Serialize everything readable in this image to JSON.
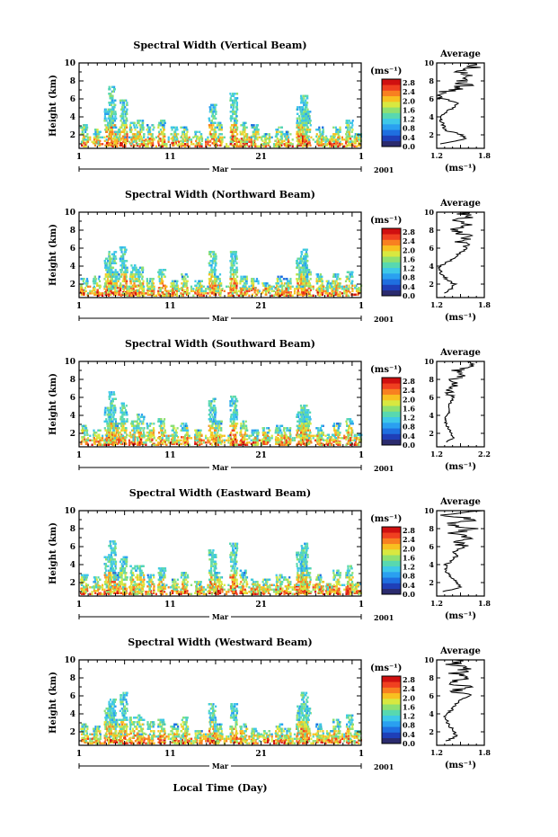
{
  "chart_data": [
    {
      "type": "heatmap",
      "title": "Spectral Width (Vertical Beam)",
      "ylabel": "Height (km)",
      "ylim": [
        0.5,
        10
      ],
      "yticks": [
        "2",
        "4",
        "6",
        "8",
        "10"
      ],
      "xticks": [
        "1",
        "11",
        "21",
        "1"
      ],
      "xlabel_month": "Mar",
      "year": "2001",
      "colorbar_unit": "(ms⁻¹)",
      "colorbar_ticks": [
        "0.0",
        "0.4",
        "0.8",
        "1.2",
        "1.6",
        "2.0",
        "2.4",
        "2.8"
      ],
      "average": {
        "title": "Average",
        "xticks": [
          "1.2",
          "1.8"
        ],
        "xlabel": "(ms⁻¹)",
        "yticks": [
          "2",
          "4",
          "6",
          "8",
          "10"
        ],
        "heights": [
          1.0,
          1.5,
          2.0,
          2.5,
          3.0,
          3.5,
          4.0,
          4.5,
          5.0,
          5.5,
          6.0,
          6.5,
          7.0,
          7.5,
          8.0,
          8.5,
          9.0,
          9.5,
          10.0
        ],
        "values": [
          1.25,
          1.55,
          1.52,
          1.32,
          1.28,
          1.26,
          1.24,
          1.32,
          1.4,
          1.48,
          1.3,
          1.24,
          1.4,
          1.55,
          1.5,
          1.65,
          1.45,
          1.7,
          1.6
        ]
      }
    },
    {
      "type": "heatmap",
      "title": "Spectral Width (Northward Beam)",
      "ylabel": "Height (km)",
      "ylim": [
        0.5,
        10
      ],
      "yticks": [
        "2",
        "4",
        "6",
        "8",
        "10"
      ],
      "xticks": [
        "1",
        "11",
        "21",
        "1"
      ],
      "xlabel_month": "Mar",
      "year": "2001",
      "colorbar_unit": "(ms⁻¹)",
      "colorbar_ticks": [
        "0.0",
        "0.4",
        "0.8",
        "1.2",
        "1.6",
        "2.0",
        "2.4",
        "2.8"
      ],
      "average": {
        "title": "Average",
        "xticks": [
          "1.2",
          "1.8"
        ],
        "xlabel": "(ms⁻¹)",
        "yticks": [
          "2",
          "4",
          "6",
          "8",
          "10"
        ],
        "heights": [
          1.0,
          1.5,
          2.0,
          2.5,
          3.0,
          3.5,
          4.0,
          4.5,
          5.0,
          5.5,
          6.0,
          6.5,
          7.0,
          7.5,
          8.0,
          8.5,
          9.0,
          9.5,
          10.0
        ],
        "values": [
          1.3,
          1.4,
          1.42,
          1.33,
          1.27,
          1.24,
          1.25,
          1.35,
          1.42,
          1.5,
          1.6,
          1.48,
          1.62,
          1.55,
          1.42,
          1.6,
          1.45,
          1.58,
          1.5
        ]
      }
    },
    {
      "type": "heatmap",
      "title": "Spectral Width (Southward Beam)",
      "ylabel": "Height (km)",
      "ylim": [
        0.5,
        10
      ],
      "yticks": [
        "2",
        "4",
        "6",
        "8",
        "10"
      ],
      "xticks": [
        "1",
        "11",
        "21",
        "1"
      ],
      "xlabel_month": "Mar",
      "year": "2001",
      "colorbar_unit": "(ms⁻¹)",
      "colorbar_ticks": [
        "0.0",
        "0.4",
        "0.8",
        "1.2",
        "1.6",
        "2.0",
        "2.4",
        "2.8"
      ],
      "average": {
        "title": "Average",
        "xticks": [
          "1.2",
          "2.2"
        ],
        "xlabel": "(ms⁻¹)",
        "yticks": [
          "2",
          "4",
          "6",
          "8",
          "10"
        ],
        "heights": [
          1.0,
          1.5,
          2.0,
          2.5,
          3.0,
          3.5,
          4.0,
          4.5,
          5.0,
          5.5,
          6.0,
          6.5,
          7.0,
          7.5,
          8.0,
          8.5,
          9.0,
          9.5,
          10.0
        ],
        "values": [
          1.4,
          1.55,
          1.5,
          1.45,
          1.4,
          1.38,
          1.42,
          1.48,
          1.45,
          1.5,
          1.55,
          1.48,
          1.45,
          1.6,
          1.55,
          1.8,
          1.6,
          2.0,
          1.9
        ]
      }
    },
    {
      "type": "heatmap",
      "title": "Spectral Width (Eastward Beam)",
      "ylabel": "Height (km)",
      "ylim": [
        0.5,
        10
      ],
      "yticks": [
        "2",
        "4",
        "6",
        "8",
        "10"
      ],
      "xticks": [
        "1",
        "11",
        "21",
        "1"
      ],
      "xlabel_month": "Mar",
      "year": "2001",
      "colorbar_unit": "(ms⁻¹)",
      "colorbar_ticks": [
        "0.0",
        "0.4",
        "0.8",
        "1.2",
        "1.6",
        "2.0",
        "2.4",
        "2.8"
      ],
      "average": {
        "title": "Average",
        "xticks": [
          "1.2",
          "1.8"
        ],
        "xlabel": "(ms⁻¹)",
        "yticks": [
          "2",
          "4",
          "6",
          "8",
          "10"
        ],
        "heights": [
          1.0,
          1.5,
          2.0,
          2.5,
          3.0,
          3.5,
          4.0,
          4.5,
          5.0,
          5.5,
          6.0,
          6.5,
          7.0,
          7.5,
          8.0,
          8.5,
          9.0,
          9.5,
          10.0
        ],
        "values": [
          1.3,
          1.5,
          1.45,
          1.4,
          1.35,
          1.3,
          1.32,
          1.4,
          1.45,
          1.42,
          1.55,
          1.45,
          1.6,
          1.4,
          1.65,
          1.35,
          1.7,
          1.3,
          1.75
        ]
      }
    },
    {
      "type": "heatmap",
      "title": "Spectral Width (Westward Beam)",
      "ylabel": "Height (km)",
      "ylim": [
        0.5,
        10
      ],
      "yticks": [
        "2",
        "4",
        "6",
        "8",
        "10"
      ],
      "xticks": [
        "1",
        "11",
        "21",
        "1"
      ],
      "xlabel_month": "Mar",
      "year": "2001",
      "colorbar_unit": "(ms⁻¹)",
      "colorbar_ticks": [
        "0.0",
        "0.4",
        "0.8",
        "1.2",
        "1.6",
        "2.0",
        "2.4",
        "2.8"
      ],
      "average": {
        "title": "Average",
        "xticks": [
          "1.2",
          "1.8"
        ],
        "xlabel": "(ms⁻¹)",
        "yticks": [
          "2",
          "4",
          "6",
          "8",
          "10"
        ],
        "heights": [
          1.0,
          1.5,
          2.0,
          2.5,
          3.0,
          3.5,
          4.0,
          4.5,
          5.0,
          5.5,
          6.0,
          6.5,
          7.0,
          7.5,
          8.0,
          8.5,
          9.0,
          9.5,
          10.0
        ],
        "values": [
          1.32,
          1.45,
          1.42,
          1.38,
          1.34,
          1.3,
          1.32,
          1.4,
          1.42,
          1.5,
          1.6,
          1.45,
          1.55,
          1.4,
          1.62,
          1.45,
          1.58,
          1.4,
          1.5
        ]
      }
    }
  ],
  "footer_xlabel": "Local Time (Day)"
}
